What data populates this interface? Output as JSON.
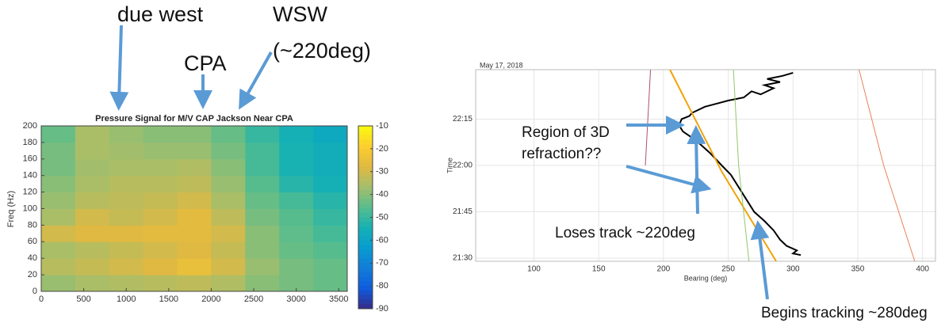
{
  "chart_data": [
    {
      "type": "heatmap",
      "title": "Pressure Signal for M/V CAP Jackson Near CPA",
      "y_label": "Freq (Hz)",
      "annotations": [
        "due west",
        "CPA",
        "WSW",
        "(~220deg)"
      ],
      "xbins": [
        0,
        400,
        800,
        1200,
        1600,
        2000,
        2400,
        2800,
        3200,
        3600
      ],
      "ybins": [
        0,
        20,
        40,
        60,
        80,
        100,
        120,
        140,
        160,
        180,
        200
      ],
      "z": [
        [
          -38,
          -36,
          -35,
          -34,
          -33,
          -35,
          -40,
          -42,
          -44
        ],
        [
          -34,
          -32,
          -30,
          -28,
          -25,
          -30,
          -38,
          -42,
          -44
        ],
        [
          -36,
          -34,
          -32,
          -30,
          -28,
          -32,
          -40,
          -44,
          -46
        ],
        [
          -30,
          -28,
          -28,
          -27,
          -27,
          -30,
          -40,
          -45,
          -48
        ],
        [
          -36,
          -30,
          -32,
          -30,
          -27,
          -33,
          -42,
          -46,
          -50
        ],
        [
          -38,
          -34,
          -33,
          -32,
          -30,
          -36,
          -44,
          -48,
          -52
        ],
        [
          -40,
          -36,
          -34,
          -34,
          -33,
          -38,
          -46,
          -52,
          -55
        ],
        [
          -42,
          -37,
          -36,
          -36,
          -35,
          -40,
          -48,
          -54,
          -56
        ],
        [
          -42,
          -36,
          -37,
          -38,
          -38,
          -42,
          -48,
          -54,
          -56
        ],
        [
          -44,
          -36,
          -38,
          -40,
          -40,
          -44,
          -50,
          -55,
          -58
        ]
      ],
      "xlim": [
        0,
        3600
      ],
      "xticks": [
        0,
        500,
        1000,
        1500,
        2000,
        2500,
        3000,
        3500
      ],
      "ylim": [
        0,
        200
      ],
      "yticks": [
        0,
        20,
        40,
        60,
        80,
        100,
        120,
        140,
        160,
        180,
        200
      ],
      "clim": [
        -90,
        -10
      ],
      "cticks": [
        -10,
        -20,
        -30,
        -40,
        -50,
        -60,
        -70,
        -80,
        -90
      ]
    },
    {
      "type": "line",
      "title": "May 17, 2018",
      "x_label": "Bearing (deg)",
      "y_label": "Time",
      "annotations": [
        "Region of 3D",
        "refraction??",
        "Loses track ~220deg",
        "Begins tracking ~280deg"
      ],
      "xlim": [
        55,
        410
      ],
      "xticks": [
        100,
        150,
        200,
        250,
        300,
        350,
        400
      ],
      "ylim": [
        1289,
        1351
      ],
      "yticks": [
        {
          "value": 1290,
          "label": "21:30"
        },
        {
          "value": 1305,
          "label": "21:45"
        },
        {
          "value": 1320,
          "label": "22:00"
        },
        {
          "value": 1335,
          "label": "22:15"
        }
      ],
      "grid": true,
      "series": [
        {
          "color": "#000000",
          "x": [
            306,
            300,
            303,
            295,
            290,
            285,
            278,
            270,
            264,
            258,
            252,
            245,
            236,
            228,
            222,
            215,
            212,
            214,
            220,
            222,
            232,
            250,
            262,
            268,
            275,
            285,
            278,
            290,
            280,
            292,
            300
          ],
          "values": [
            1291,
            1291.5,
            1292.5,
            1294,
            1296,
            1299,
            1302,
            1305,
            1309,
            1313,
            1317,
            1320,
            1324,
            1327,
            1329,
            1331,
            1333,
            1335,
            1336,
            1337,
            1339,
            1341,
            1342,
            1344,
            1343,
            1345,
            1346,
            1347,
            1348,
            1349,
            1350
          ]
        },
        {
          "color": "#f0a30a",
          "x": [
            287,
            245,
            205
          ],
          "values": [
            1289,
            1318,
            1351
          ]
        },
        {
          "color": "#b0506a",
          "x": [
            186,
            190
          ],
          "values": [
            1320,
            1351
          ]
        },
        {
          "color": "#8fc86a",
          "x": [
            266,
            258,
            254
          ],
          "values": [
            1289,
            1320,
            1351
          ]
        },
        {
          "color": "#e8825a",
          "x": [
            394,
            370,
            351
          ],
          "values": [
            1289,
            1320,
            1351
          ]
        }
      ]
    }
  ]
}
